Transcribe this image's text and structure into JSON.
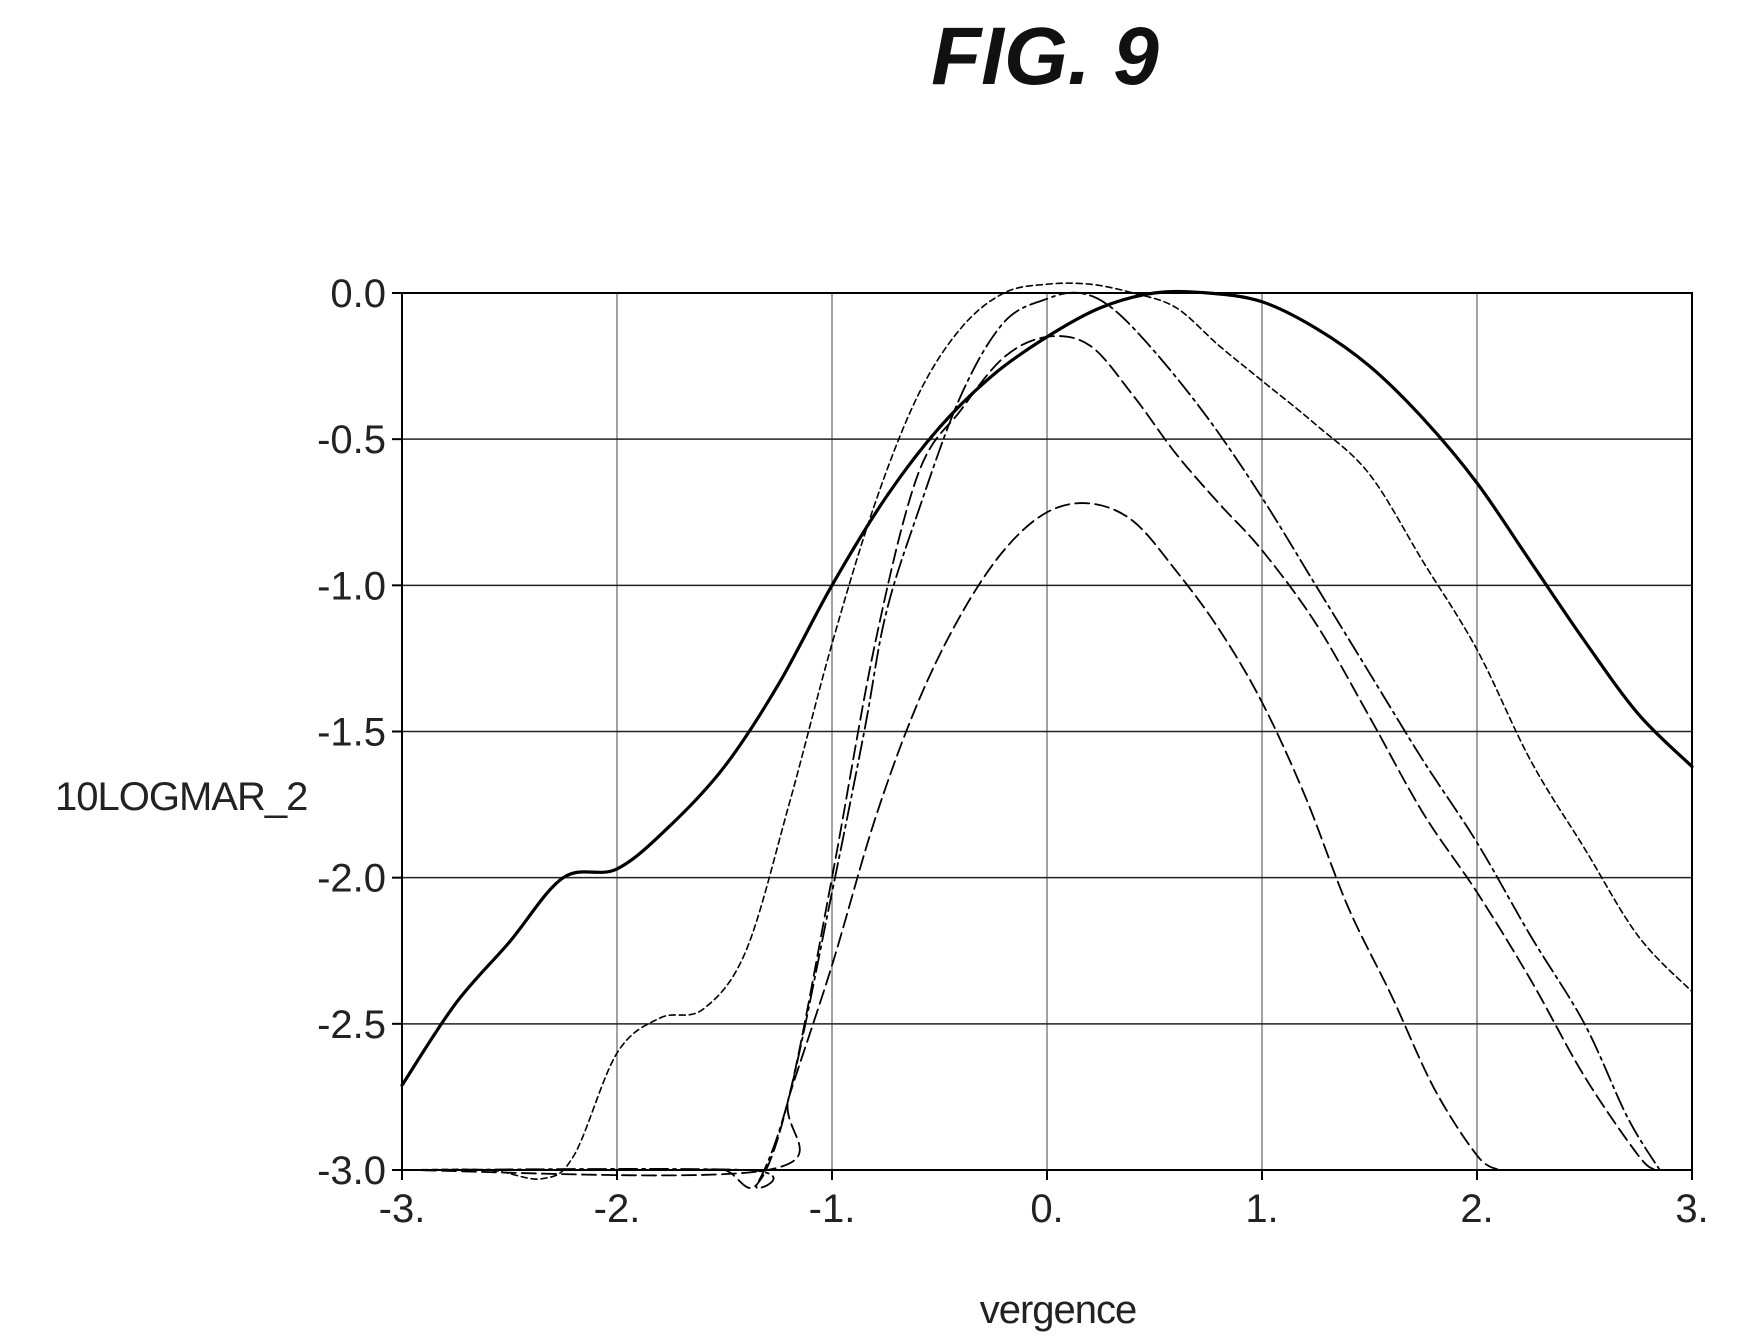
{
  "figure": {
    "title": "FIG. 9"
  },
  "chart_data": {
    "type": "line",
    "xlabel": "vergence",
    "ylabel": "10LOGMAR_2",
    "xlim": [
      -3,
      3
    ],
    "ylim": [
      -3,
      0
    ],
    "grid": true,
    "xticks": [
      -3,
      -2,
      -1,
      0,
      1,
      2,
      3
    ],
    "xtick_labels": [
      "-3.",
      "-2.",
      "-1.",
      "0.",
      "1.",
      "2.",
      "3."
    ],
    "yticks": [
      0,
      -0.5,
      -1,
      -1.5,
      -2,
      -2.5,
      -3
    ],
    "ytick_labels": [
      "0.0",
      "-0.5",
      "-1.0",
      "-1.5",
      "-2.0",
      "-2.5",
      "-3.0"
    ],
    "series": [
      {
        "style": "solid-thick",
        "points": [
          [
            -3,
            -2.71
          ],
          [
            -2.75,
            -2.43
          ],
          [
            -2.5,
            -2.22
          ],
          [
            -2.25,
            -2.0
          ],
          [
            -2.0,
            -1.97
          ],
          [
            -1.75,
            -1.82
          ],
          [
            -1.5,
            -1.62
          ],
          [
            -1.25,
            -1.34
          ],
          [
            -1.0,
            -1.0
          ],
          [
            -0.75,
            -0.7
          ],
          [
            -0.5,
            -0.46
          ],
          [
            -0.25,
            -0.28
          ],
          [
            0.0,
            -0.15
          ],
          [
            0.25,
            -0.05
          ],
          [
            0.5,
            0.0
          ],
          [
            0.75,
            0.0
          ],
          [
            1.0,
            -0.03
          ],
          [
            1.25,
            -0.12
          ],
          [
            1.5,
            -0.25
          ],
          [
            1.75,
            -0.43
          ],
          [
            2.0,
            -0.65
          ],
          [
            2.25,
            -0.92
          ],
          [
            2.5,
            -1.19
          ],
          [
            2.75,
            -1.44
          ],
          [
            3.0,
            -1.62
          ]
        ]
      },
      {
        "style": "fine-dash",
        "points": [
          [
            -3,
            -3.0
          ],
          [
            -2.6,
            -3.0
          ],
          [
            -2.35,
            -3.03
          ],
          [
            -2.2,
            -2.95
          ],
          [
            -2.0,
            -2.6
          ],
          [
            -1.8,
            -2.48
          ],
          [
            -1.6,
            -2.45
          ],
          [
            -1.4,
            -2.25
          ],
          [
            -1.2,
            -1.75
          ],
          [
            -1.0,
            -1.2
          ],
          [
            -0.8,
            -0.72
          ],
          [
            -0.6,
            -0.35
          ],
          [
            -0.4,
            -0.12
          ],
          [
            -0.2,
            0.0
          ],
          [
            0.0,
            0.03
          ],
          [
            0.2,
            0.03
          ],
          [
            0.4,
            0.0
          ],
          [
            0.6,
            -0.05
          ],
          [
            0.8,
            -0.18
          ],
          [
            1.0,
            -0.3
          ],
          [
            1.25,
            -0.45
          ],
          [
            1.5,
            -0.62
          ],
          [
            1.75,
            -0.92
          ],
          [
            2.0,
            -1.22
          ],
          [
            2.25,
            -1.6
          ],
          [
            2.5,
            -1.9
          ],
          [
            2.75,
            -2.2
          ],
          [
            3.0,
            -2.39
          ]
        ]
      },
      {
        "style": "long-dash",
        "points": [
          [
            -3,
            -3.0
          ],
          [
            -1.7,
            -3.0
          ],
          [
            -1.5,
            -3.0
          ],
          [
            -1.35,
            -3.05
          ],
          [
            -1.2,
            -2.75
          ],
          [
            -1.0,
            -2.0
          ],
          [
            -0.8,
            -1.2
          ],
          [
            -0.6,
            -0.62
          ],
          [
            -0.4,
            -0.4
          ],
          [
            -0.2,
            -0.22
          ],
          [
            0.0,
            -0.15
          ],
          [
            0.2,
            -0.18
          ],
          [
            0.4,
            -0.35
          ],
          [
            0.6,
            -0.55
          ],
          [
            0.8,
            -0.72
          ],
          [
            1.0,
            -0.88
          ],
          [
            1.25,
            -1.13
          ],
          [
            1.5,
            -1.45
          ],
          [
            1.75,
            -1.78
          ],
          [
            2.0,
            -2.05
          ],
          [
            2.25,
            -2.35
          ],
          [
            2.5,
            -2.68
          ],
          [
            2.75,
            -2.95
          ],
          [
            2.83,
            -3.0
          ]
        ]
      },
      {
        "style": "dash-dot",
        "points": [
          [
            -3,
            -3.0
          ],
          [
            -1.4,
            -3.0
          ],
          [
            -1.35,
            -3.05
          ],
          [
            -1.2,
            -2.75
          ],
          [
            -1.0,
            -2.05
          ],
          [
            -0.85,
            -1.5
          ],
          [
            -0.75,
            -1.1
          ],
          [
            -0.6,
            -0.75
          ],
          [
            -0.4,
            -0.35
          ],
          [
            -0.2,
            -0.1
          ],
          [
            0.0,
            -0.02
          ],
          [
            0.15,
            0.0
          ],
          [
            0.3,
            -0.05
          ],
          [
            0.5,
            -0.2
          ],
          [
            0.75,
            -0.43
          ],
          [
            1.0,
            -0.7
          ],
          [
            1.25,
            -1.0
          ],
          [
            1.5,
            -1.3
          ],
          [
            1.75,
            -1.6
          ],
          [
            2.0,
            -1.88
          ],
          [
            2.25,
            -2.2
          ],
          [
            2.5,
            -2.5
          ],
          [
            2.7,
            -2.82
          ],
          [
            2.85,
            -3.0
          ]
        ]
      },
      {
        "style": "long-dash",
        "points": [
          [
            -3,
            -3.0
          ],
          [
            -1.3,
            -3.0
          ],
          [
            -1.2,
            -2.75
          ],
          [
            -1.0,
            -2.3
          ],
          [
            -0.8,
            -1.8
          ],
          [
            -0.6,
            -1.4
          ],
          [
            -0.4,
            -1.1
          ],
          [
            -0.2,
            -0.88
          ],
          [
            0.0,
            -0.75
          ],
          [
            0.2,
            -0.72
          ],
          [
            0.4,
            -0.78
          ],
          [
            0.6,
            -0.95
          ],
          [
            0.8,
            -1.15
          ],
          [
            1.0,
            -1.4
          ],
          [
            1.2,
            -1.72
          ],
          [
            1.4,
            -2.1
          ],
          [
            1.6,
            -2.4
          ],
          [
            1.8,
            -2.72
          ],
          [
            2.0,
            -2.95
          ],
          [
            2.1,
            -3.0
          ]
        ]
      }
    ]
  }
}
